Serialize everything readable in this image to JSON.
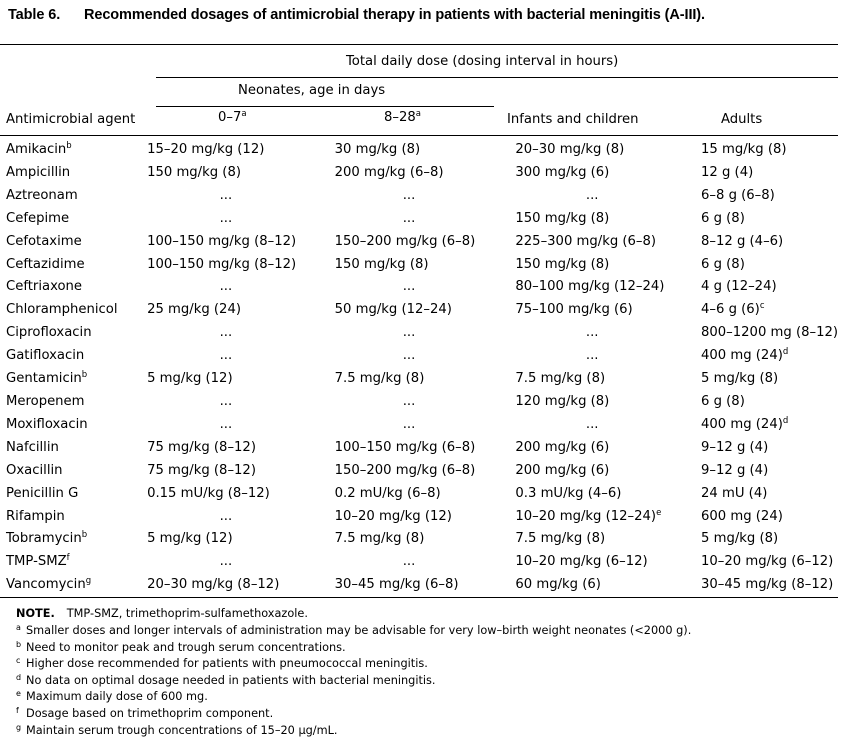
{
  "title": {
    "number": "Table 6.",
    "text": "Recommended dosages of antimicrobial therapy in patients with bacterial meningitis (A-III)."
  },
  "header": {
    "group": "Total daily dose (dosing interval in hours)",
    "neonates": "Neonates, age in days",
    "agent": "Antimicrobial agent",
    "n0": "0–7",
    "n0_sup": "a",
    "n8": "8–28",
    "n8_sup": "a",
    "infants": "Infants and children",
    "adults": "Adults"
  },
  "rows": [
    {
      "agent": "Amikacin",
      "agent_sup": "b",
      "n0": "15–20 mg/kg (12)",
      "n8": "30 mg/kg (8)",
      "inf": "20–30 mg/kg (8)",
      "adult": "15 mg/kg (8)"
    },
    {
      "agent": "Ampicillin",
      "n0": "150 mg/kg (8)",
      "n8": "200 mg/kg (6–8)",
      "inf": "300 mg/kg (6)",
      "adult": "12 g (4)"
    },
    {
      "agent": "Aztreonam",
      "n0": "...",
      "n8": "...",
      "inf": "...",
      "adult": "6–8 g (6–8)"
    },
    {
      "agent": "Cefepime",
      "n0": "...",
      "n8": "...",
      "inf": "150 mg/kg (8)",
      "adult": "6 g (8)"
    },
    {
      "agent": "Cefotaxime",
      "n0": "100–150 mg/kg (8–12)",
      "n8": "150–200 mg/kg (6–8)",
      "inf": "225–300 mg/kg (6–8)",
      "adult": "8–12 g (4–6)"
    },
    {
      "agent": "Ceftazidime",
      "n0": "100–150 mg/kg (8–12)",
      "n8": "150 mg/kg (8)",
      "inf": "150 mg/kg (8)",
      "adult": "6 g (8)"
    },
    {
      "agent": "Ceftriaxone",
      "n0": "...",
      "n8": "...",
      "inf": "80–100 mg/kg (12–24)",
      "adult": "4 g (12–24)"
    },
    {
      "agent": "Chloramphenicol",
      "n0": "25 mg/kg (24)",
      "n8": "50 mg/kg (12–24)",
      "inf": "75–100 mg/kg (6)",
      "adult": "4–6 g (6)",
      "adult_sup": "c"
    },
    {
      "agent": "Ciprofloxacin",
      "n0": "...",
      "n8": "...",
      "inf": "...",
      "adult": "800–1200 mg (8–12)"
    },
    {
      "agent": "Gatifloxacin",
      "n0": "...",
      "n8": "...",
      "inf": "...",
      "adult": "400 mg (24)",
      "adult_sup": "d"
    },
    {
      "agent": "Gentamicin",
      "agent_sup": "b",
      "n0": "5 mg/kg (12)",
      "n8": "7.5 mg/kg (8)",
      "inf": "7.5 mg/kg (8)",
      "adult": "5 mg/kg (8)"
    },
    {
      "agent": "Meropenem",
      "n0": "...",
      "n8": "...",
      "inf": "120 mg/kg (8)",
      "adult": "6 g (8)"
    },
    {
      "agent": "Moxifloxacin",
      "n0": "...",
      "n8": "...",
      "inf": "...",
      "adult": "400 mg (24)",
      "adult_sup": "d"
    },
    {
      "agent": "Nafcillin",
      "n0": "75 mg/kg (8–12)",
      "n8": "100–150 mg/kg (6–8)",
      "inf": "200 mg/kg (6)",
      "adult": "9–12 g (4)"
    },
    {
      "agent": "Oxacillin",
      "n0": "75 mg/kg (8–12)",
      "n8": "150–200 mg/kg (6–8)",
      "inf": "200 mg/kg (6)",
      "adult": "9–12 g (4)"
    },
    {
      "agent": "Penicillin G",
      "n0": "0.15 mU/kg (8–12)",
      "n8": "0.2 mU/kg (6–8)",
      "inf": "0.3 mU/kg (4–6)",
      "adult": "24 mU (4)"
    },
    {
      "agent": "Rifampin",
      "n0": "...",
      "n8": "10–20 mg/kg (12)",
      "inf": "10–20 mg/kg (12–24)",
      "inf_sup": "e",
      "adult": "600 mg (24)"
    },
    {
      "agent": "Tobramycin",
      "agent_sup": "b",
      "n0": "5 mg/kg (12)",
      "n8": "7.5 mg/kg (8)",
      "inf": "7.5 mg/kg (8)",
      "adult": "5 mg/kg (8)"
    },
    {
      "agent": "TMP-SMZ",
      "agent_sup": "f",
      "n0": "...",
      "n8": "...",
      "inf": "10–20 mg/kg (6–12)",
      "adult": "10–20 mg/kg (6–12)"
    },
    {
      "agent": "Vancomycin",
      "agent_sup": "g",
      "n0": "20–30 mg/kg (8–12)",
      "n8": "30–45 mg/kg (6–8)",
      "inf": "60 mg/kg (6)",
      "adult": "30–45 mg/kg (8–12)"
    }
  ],
  "notes": {
    "label": "NOTE.",
    "text": "TMP-SMZ, trimethoprim-sulfamethoxazole.",
    "footnotes": [
      {
        "mark": "a",
        "text": "Smaller doses and longer intervals of administration may be advisable for very low–birth weight neonates (<2000 g)."
      },
      {
        "mark": "b",
        "text": "Need to monitor peak and trough serum concentrations."
      },
      {
        "mark": "c",
        "text": "Higher dose recommended for patients with pneumococcal meningitis."
      },
      {
        "mark": "d",
        "text": "No data on optimal dosage needed in patients with bacterial meningitis."
      },
      {
        "mark": "e",
        "text": "Maximum daily dose of 600 mg."
      },
      {
        "mark": "f",
        "text": "Dosage based on trimethoprim component."
      },
      {
        "mark": "g",
        "text": "Maintain serum trough concentrations of 15–20 μg/mL."
      }
    ]
  }
}
